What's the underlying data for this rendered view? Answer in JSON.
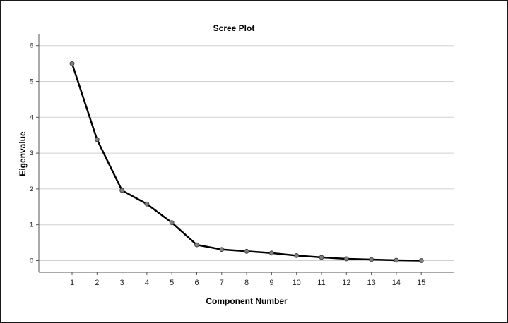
{
  "chart_data": {
    "type": "line",
    "title": "Scree Plot",
    "xlabel": "Component Number",
    "ylabel": "Eigenvalue",
    "x": [
      1,
      2,
      3,
      4,
      5,
      6,
      7,
      8,
      9,
      10,
      11,
      12,
      13,
      14,
      15
    ],
    "series": [
      {
        "values": [
          5.5,
          3.38,
          1.96,
          1.58,
          1.06,
          0.44,
          0.31,
          0.26,
          0.21,
          0.14,
          0.09,
          0.05,
          0.03,
          0.01,
          0.0
        ]
      }
    ],
    "ylim": [
      0,
      6
    ],
    "yticks": [
      "0",
      "1",
      "2",
      "3",
      "4",
      "5",
      "6"
    ],
    "xticks": [
      "1",
      "2",
      "3",
      "4",
      "5",
      "6",
      "7",
      "8",
      "9",
      "10",
      "11",
      "12",
      "13",
      "14",
      "15"
    ],
    "grid": "horizontal",
    "line_color": "#000000",
    "marker_color": "#808080",
    "grid_color": "#d0d0d0"
  }
}
